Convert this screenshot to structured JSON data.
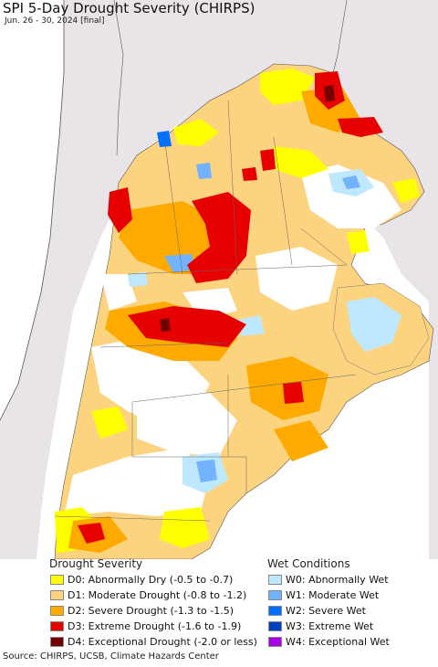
{
  "title": "SPI 5-Day Drought Severity (CHIRPS)",
  "subtitle": "Jun. 26 - 30, 2024 [final]",
  "legend": {
    "drought_title": "Drought Severity",
    "drought_items": [
      {
        "label": "D0: Abnormally Dry (-0.5 to -0.7)",
        "color": "#ffff00"
      },
      {
        "label": "D1: Moderate Drought (-0.8 to -1.2)",
        "color": "#fcd37f"
      },
      {
        "label": "D2: Severe Drought (-1.3 to -1.5)",
        "color": "#ffaa00"
      },
      {
        "label": "D3: Extreme Drought (-1.6 to -1.9)",
        "color": "#e60000"
      },
      {
        "label": "D4: Exceptional Drought (-2.0 or less)",
        "color": "#730000"
      }
    ],
    "wet_title": "Wet Conditions",
    "wet_items": [
      {
        "label": "W0: Abnormally Wet",
        "color": "#bee8ff"
      },
      {
        "label": "W1: Moderate Wet",
        "color": "#73b2ff"
      },
      {
        "label": "W2: Severe Wet",
        "color": "#0070ff"
      },
      {
        "label": "W3: Extreme Wet",
        "color": "#0040c0"
      },
      {
        "label": "W4: Exceptional Wet",
        "color": "#a900e6"
      }
    ]
  },
  "source": "Source: CHIRPS, UCSB, Climate Hazards Center",
  "colors": {
    "background_land": "#e8e4e8",
    "ocean": "#ffffff",
    "border": "#555555"
  }
}
